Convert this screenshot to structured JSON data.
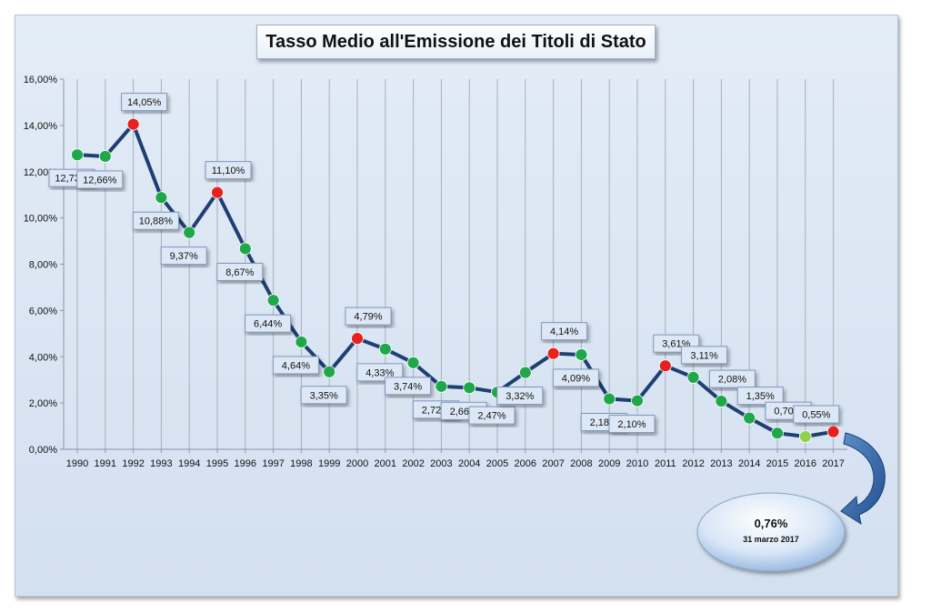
{
  "chart_data": {
    "type": "line",
    "title": "Tasso Medio all'Emissione dei Titoli di Stato",
    "xlabel": "",
    "ylabel": "",
    "ylim": [
      0,
      16
    ],
    "y_ticks": [
      "0,00%",
      "2,00%",
      "4,00%",
      "6,00%",
      "8,00%",
      "10,00%",
      "12,00%",
      "14,00%",
      "16,00%"
    ],
    "grid": "vertical",
    "categories": [
      "1990",
      "1991",
      "1992",
      "1993",
      "1994",
      "1995",
      "1996",
      "1997",
      "1998",
      "1999",
      "2000",
      "2001",
      "2002",
      "2003",
      "2004",
      "2005",
      "2006",
      "2007",
      "2008",
      "2009",
      "2010",
      "2011",
      "2012",
      "2013",
      "2014",
      "2015",
      "2016",
      "2017"
    ],
    "values": [
      12.73,
      12.66,
      14.05,
      10.88,
      9.37,
      11.1,
      8.67,
      6.44,
      4.64,
      3.35,
      4.79,
      4.33,
      3.74,
      2.72,
      2.66,
      2.47,
      3.32,
      4.14,
      4.09,
      2.18,
      2.1,
      3.61,
      3.11,
      2.08,
      1.35,
      0.7,
      0.55,
      0.76
    ],
    "data_labels": [
      "12,73%",
      "12,66%",
      "14,05%",
      "10,88%",
      "9,37%",
      "11,10%",
      "8,67%",
      "6,44%",
      "4,64%",
      "3,35%",
      "4,79%",
      "4,33%",
      "3,74%",
      "2,72%",
      "2,66%",
      "2,47%",
      "3,32%",
      "4,14%",
      "4,09%",
      "2,18%",
      "2,10%",
      "3,61%",
      "3,11%",
      "2,08%",
      "1,35%",
      "0,70%",
      "0,55%",
      ""
    ],
    "label_position": [
      "below",
      "below",
      "above",
      "below",
      "below",
      "above",
      "below",
      "below",
      "below",
      "below",
      "above",
      "below",
      "below",
      "below",
      "below",
      "below",
      "below",
      "above",
      "below",
      "below",
      "below",
      "above",
      "above",
      "above",
      "above",
      "above",
      "above",
      ""
    ],
    "marker_colors": [
      "#1fa84a",
      "#1fa84a",
      "#e8201e",
      "#1fa84a",
      "#1fa84a",
      "#e8201e",
      "#1fa84a",
      "#1fa84a",
      "#1fa84a",
      "#1fa84a",
      "#e8201e",
      "#1fa84a",
      "#1fa84a",
      "#1fa84a",
      "#1fa84a",
      "#1fa84a",
      "#1fa84a",
      "#e8201e",
      "#1fa84a",
      "#1fa84a",
      "#1fa84a",
      "#e8201e",
      "#1fa84a",
      "#1fa84a",
      "#1fa84a",
      "#1fa84a",
      "#8fd14f",
      "#e8201e"
    ],
    "line_color": "#1f3f73",
    "callout": {
      "value": "0,76%",
      "date": "31 marzo 2017"
    }
  }
}
